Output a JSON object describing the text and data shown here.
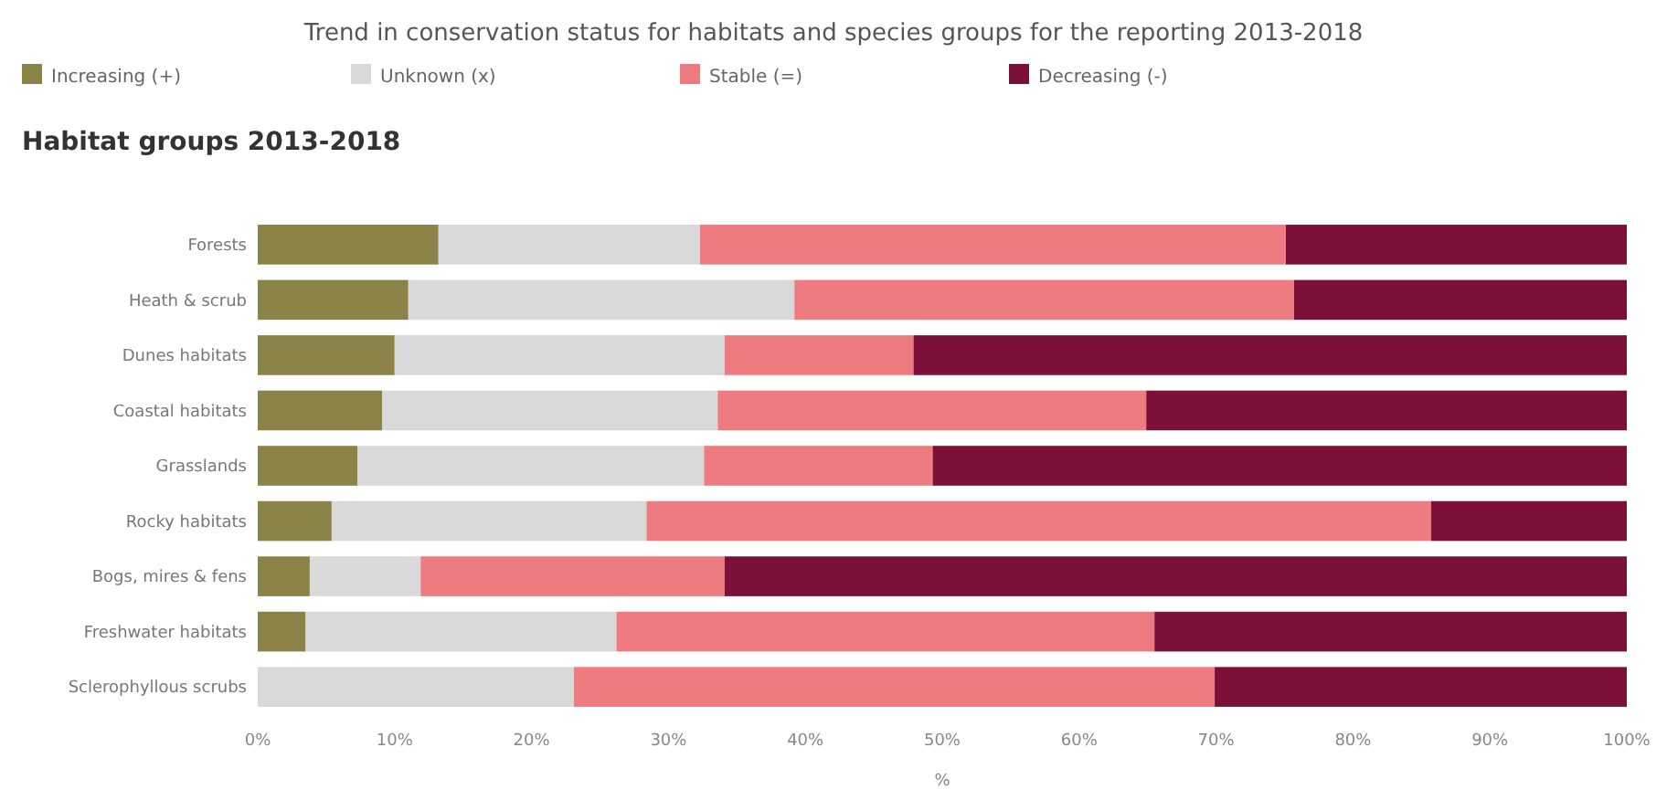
{
  "chart_data": {
    "type": "bar",
    "orientation": "horizontal",
    "stacked": true,
    "title": "Trend in conservation status for habitats and species groups for the reporting 2013-2018",
    "subtitle": "Habitat groups 2013-2018",
    "xlabel": "%",
    "categories": [
      "Forests",
      "Heath & scrub",
      "Dunes habitats",
      "Coastal habitats",
      "Grasslands",
      "Rocky habitats",
      "Bogs, mires & fens",
      "Freshwater habitats",
      "Sclerophyllous scrubs"
    ],
    "series": [
      {
        "name": "Increasing (+)",
        "color": "#8b8248",
        "values": [
          13.2,
          11.0,
          10.0,
          9.1,
          7.3,
          5.4,
          3.8,
          3.5,
          0
        ]
      },
      {
        "name": "Unknown (x)",
        "color": "#d9d9d9",
        "values": [
          19.1,
          28.2,
          24.1,
          24.5,
          25.3,
          23.0,
          8.1,
          22.7,
          23.1
        ]
      },
      {
        "name": "Stable (=)",
        "color": "#ee7b7f",
        "values": [
          42.8,
          36.5,
          13.8,
          31.3,
          16.7,
          57.3,
          22.2,
          39.3,
          46.8
        ]
      },
      {
        "name": "Decreasing (-)",
        "color": "#7b1038",
        "values": [
          24.9,
          24.3,
          52.1,
          35.1,
          50.7,
          14.3,
          65.9,
          34.5,
          30.1
        ]
      }
    ],
    "xlim": [
      0,
      100
    ],
    "xticks": [
      {
        "value": 0,
        "label": "0%"
      },
      {
        "value": 10,
        "label": "10%"
      },
      {
        "value": 20,
        "label": "20%"
      },
      {
        "value": 30,
        "label": "30%"
      },
      {
        "value": 40,
        "label": "40%"
      },
      {
        "value": 50,
        "label": "50%"
      },
      {
        "value": 60,
        "label": "60%"
      },
      {
        "value": 70,
        "label": "70%"
      },
      {
        "value": 80,
        "label": "80%"
      },
      {
        "value": 90,
        "label": "90%"
      },
      {
        "value": 100,
        "label": "100%"
      }
    ],
    "legend": "top left",
    "grid": false
  }
}
